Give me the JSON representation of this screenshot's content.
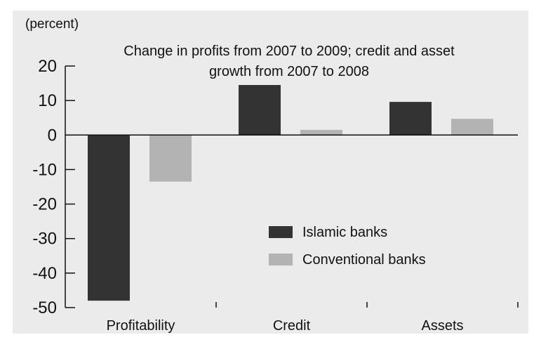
{
  "chart_data": {
    "type": "bar",
    "title": "Change in profits from 2007 to 2009; credit and asset growth from 2007 to 2008",
    "title_lines": [
      "Change in profits from 2007 to 2009; credit and asset",
      "growth from 2007 to 2008"
    ],
    "unit_label": "(percent)",
    "categories": [
      "Profitability",
      "Credit",
      "Assets"
    ],
    "series": [
      {
        "name": "Islamic banks",
        "values": [
          -48,
          14.5,
          9.6
        ],
        "color": "#333333"
      },
      {
        "name": "Conventional banks",
        "values": [
          -13.5,
          1.5,
          4.7
        ],
        "color": "#b3b3b3"
      }
    ],
    "ylim": [
      -50,
      25
    ],
    "yticks": [
      20,
      10,
      0,
      -10,
      -20,
      -30,
      -40,
      -50
    ],
    "ytick_labels": [
      "20",
      "10",
      "0",
      "-10",
      "-20",
      "-30",
      "-40",
      "-50"
    ],
    "grid": false,
    "legend_position": "center-right",
    "background_color": "#ebebeb"
  }
}
